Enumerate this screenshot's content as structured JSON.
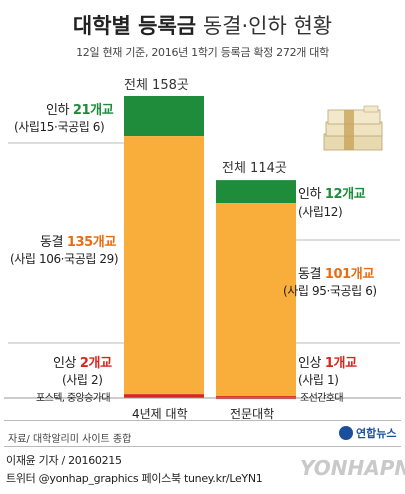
{
  "title": {
    "bold": "대학별 등록금",
    "rest": "동결·인하 현황"
  },
  "subtitle": "12일 현재 기준, 2016년 1학기 등록금 확정 272개 대학",
  "colors": {
    "inha": "#1e8c3a",
    "freeze": "#f9ad3a",
    "raise": "#d7261e",
    "orange_text": "#ea6b13"
  },
  "chart_data": {
    "type": "bar",
    "stacked": true,
    "categories": [
      "4년제 대학",
      "전문대학"
    ],
    "totals": [
      "전체 158곳",
      "전체 114곳"
    ],
    "total_values": [
      158,
      114
    ],
    "series": [
      {
        "name": "인하",
        "values": [
          21,
          12
        ]
      },
      {
        "name": "동결",
        "values": [
          135,
          101
        ]
      },
      {
        "name": "인상",
        "values": [
          2,
          1
        ]
      }
    ],
    "labels": {
      "univ": {
        "inha_pre": "인하",
        "inha_val": "21개교",
        "inha_sub": "(사립15·국공립 6)",
        "freeze_pre": "동결",
        "freeze_val": "135개교",
        "freeze_sub": "(사립 106·국공립 29)",
        "raise_pre": "인상",
        "raise_val": "2개교",
        "raise_sub": "(사립 2)",
        "raise_names": "포스텍, 중앙승가대"
      },
      "college": {
        "inha_pre": "인하",
        "inha_val": "12개교",
        "inha_sub": "(사립12)",
        "freeze_pre": "동결",
        "freeze_val": "101개교",
        "freeze_sub": "(사립 95·국공립 6)",
        "raise_pre": "인상",
        "raise_val": "1개교",
        "raise_sub": "(사립 1)",
        "raise_names": "조선간호대"
      }
    }
  },
  "footer": {
    "source": "자료/ 대학알리미 사이트 종합",
    "byline": "이재윤 기자 / 20160215",
    "social": "트위터 @yonhap_graphics  페이스북 tuney.kr/LeYN1",
    "logo": "연합뉴스",
    "watermark": "YONHAPNEWS"
  }
}
